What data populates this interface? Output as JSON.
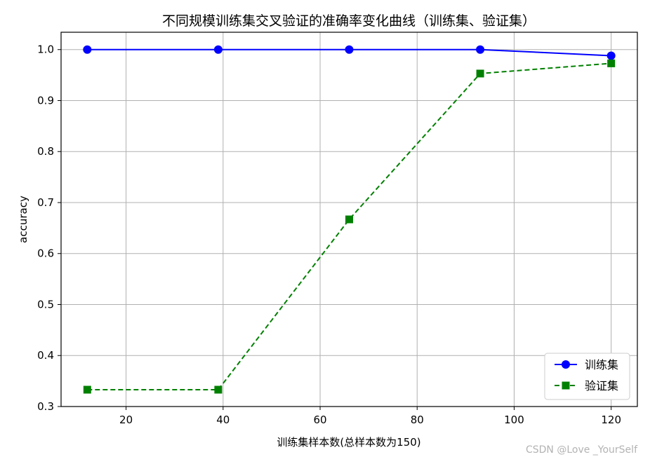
{
  "chart_data": {
    "type": "line",
    "title": "不同规模训练集交叉验证的准确率变化曲线（训练集、验证集）",
    "xlabel": "训练集样本数(总样本数为150)",
    "ylabel": "accuracy",
    "x": [
      12,
      39,
      66,
      93,
      120
    ],
    "series": [
      {
        "name": "训练集",
        "values": [
          1.0,
          1.0,
          1.0,
          1.0,
          0.988
        ],
        "color": "#0000ff",
        "marker": "circle",
        "line_style": "solid"
      },
      {
        "name": "验证集",
        "values": [
          0.333,
          0.333,
          0.667,
          0.953,
          0.973
        ],
        "color": "#008000",
        "marker": "square",
        "line_style": "dashed"
      }
    ],
    "xlim": [
      6.6,
      125.4
    ],
    "ylim": [
      0.3,
      1.034
    ],
    "xticks": [
      20,
      40,
      60,
      80,
      100,
      120
    ],
    "yticks": [
      0.3,
      0.4,
      0.5,
      0.6,
      0.7,
      0.8,
      0.9,
      1.0
    ],
    "xtick_labels": [
      "20",
      "40",
      "60",
      "80",
      "100",
      "120"
    ],
    "ytick_labels": [
      "0.3",
      "0.4",
      "0.5",
      "0.6",
      "0.7",
      "0.8",
      "0.9",
      "1.0"
    ],
    "grid": true,
    "legend_position": "lower-right"
  },
  "watermark": "CSDN @Love _YourSelf"
}
